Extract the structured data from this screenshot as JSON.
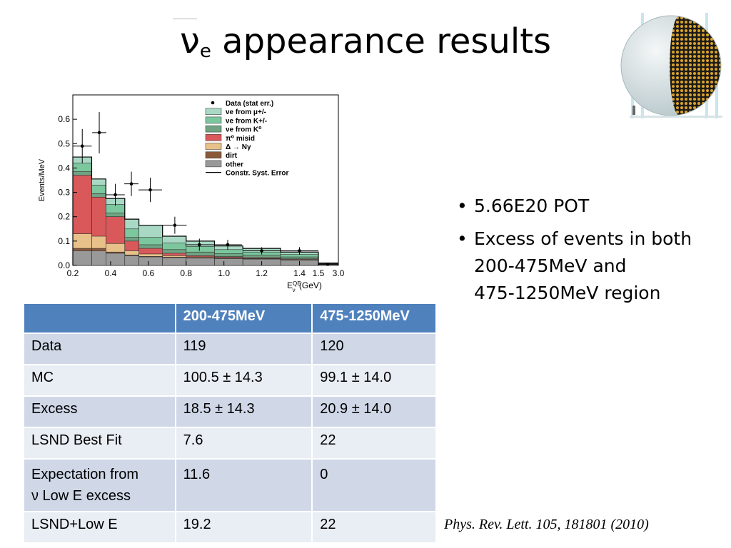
{
  "slide": {
    "title_symbol": "ν",
    "title_subscript": "e",
    "title_text": " appearance results",
    "reference": "Phys. Rev. Lett. 105, 181801 (2010)"
  },
  "bullets": [
    {
      "text": "5.66E20 POT"
    },
    {
      "text": "Excess of events in both",
      "text2": "200-475MeV and",
      "text3": "475-1250MeV region"
    }
  ],
  "table": {
    "headers": [
      "",
      "200-475MeV",
      "475-1250MeV"
    ],
    "rows": [
      {
        "label": "Data",
        "c1": "119",
        "c2": "120"
      },
      {
        "label": "MC",
        "c1": "100.5 ± 14.3",
        "c2": "99.1 ± 14.0"
      },
      {
        "label": "Excess",
        "c1": "18.5 ± 14.3",
        "c2": "20.9  ± 14.0"
      },
      {
        "label": "LSND Best Fit",
        "c1": "7.6",
        "c2": "22"
      },
      {
        "label": "Expectation from",
        "label2": "ν Low E excess",
        "c1": "11.6",
        "c2": "0"
      },
      {
        "label": "LSND+Low E",
        "c1": "19.2",
        "c2": "22"
      }
    ]
  },
  "chart_data": {
    "type": "area",
    "ylabel": "Events/MeV",
    "xlabel_main": "E",
    "xlabel_sub": "ν",
    "xlabel_sup": "QE",
    "xlabel_unit": " (GeV)",
    "ylim": [
      0,
      0.7
    ],
    "y_ticks": [
      "0.0",
      "0.1",
      "0.2",
      "0.3",
      "0.4",
      "0.5",
      "0.6"
    ],
    "x_ticks": [
      {
        "label": "0.2",
        "v": 0.2
      },
      {
        "label": "0.4",
        "v": 0.4
      },
      {
        "label": "0.6",
        "v": 0.6
      },
      {
        "label": "0.8",
        "v": 0.8
      },
      {
        "label": "1.0",
        "v": 1.0
      },
      {
        "label": "1.2",
        "v": 1.2
      },
      {
        "label": "1.4",
        "v": 1.4
      },
      {
        "label": "1.5",
        "v": 1.5
      },
      {
        "label": "3.0",
        "v": 3.0
      }
    ],
    "bin_edges": [
      0.2,
      0.3,
      0.375,
      0.475,
      0.55,
      0.675,
      0.8,
      0.95,
      1.1,
      1.3,
      1.5,
      3.0
    ],
    "stack_labels": [
      "other",
      "dirt",
      "Δ → Nγ",
      "π⁰ misid",
      "νe from K⁰",
      "νe from K+/-",
      "νe from μ+/-"
    ],
    "stack_colors": [
      "#999999",
      "#8b5a3c",
      "#e8c08a",
      "#d9595a",
      "#6fa383",
      "#7cc79e",
      "#a9d9c5"
    ],
    "stack_cumulative": [
      [
        0.06,
        0.06,
        0.05,
        0.04,
        0.035,
        0.032,
        0.03,
        0.028,
        0.026,
        0.022,
        0.004
      ],
      [
        0.07,
        0.07,
        0.055,
        0.043,
        0.037,
        0.034,
        0.032,
        0.03,
        0.027,
        0.023,
        0.004
      ],
      [
        0.13,
        0.12,
        0.09,
        0.06,
        0.047,
        0.04,
        0.035,
        0.032,
        0.029,
        0.025,
        0.005
      ],
      [
        0.37,
        0.28,
        0.2,
        0.1,
        0.07,
        0.05,
        0.04,
        0.036,
        0.032,
        0.027,
        0.005
      ],
      [
        0.385,
        0.295,
        0.215,
        0.115,
        0.085,
        0.065,
        0.055,
        0.048,
        0.042,
        0.035,
        0.007
      ],
      [
        0.42,
        0.33,
        0.25,
        0.15,
        0.115,
        0.092,
        0.078,
        0.065,
        0.055,
        0.045,
        0.008
      ],
      [
        0.445,
        0.355,
        0.275,
        0.19,
        0.165,
        0.12,
        0.1,
        0.08,
        0.07,
        0.055,
        0.01
      ]
    ],
    "data_points": {
      "x": [
        0.25,
        0.34,
        0.425,
        0.51,
        0.61,
        0.74,
        0.87,
        1.02,
        1.2,
        1.4,
        2.2
      ],
      "y": [
        0.49,
        0.545,
        0.29,
        0.335,
        0.31,
        0.165,
        0.085,
        0.085,
        0.06,
        0.06,
        0.005
      ],
      "yerr": [
        0.07,
        0.085,
        0.045,
        0.05,
        0.05,
        0.035,
        0.025,
        0.02,
        0.015,
        0.015,
        0.003
      ]
    },
    "legend": [
      "Data (stat err.)",
      "νe from μ+/-",
      "νe from K+/-",
      "νe from K⁰",
      "π⁰ misid",
      "Δ → Nγ",
      "dirt",
      "other",
      "Constr. Syst. Error"
    ],
    "legend_position": "top-right"
  }
}
